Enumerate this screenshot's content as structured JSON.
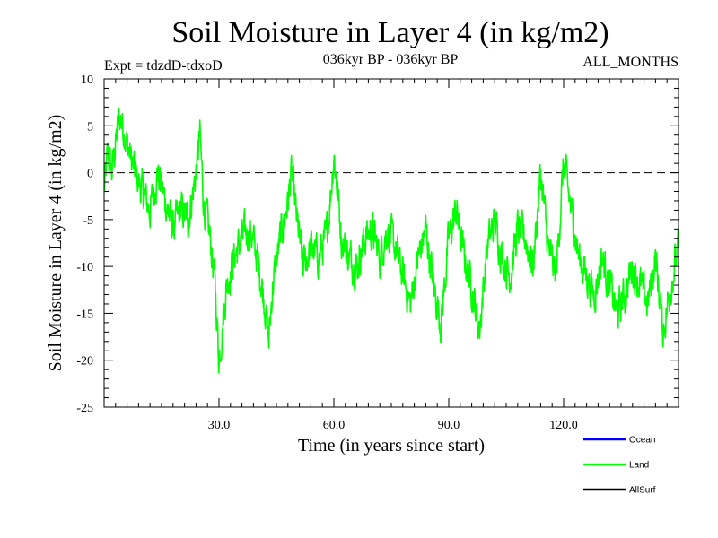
{
  "chart_data": {
    "type": "line",
    "title": "Soil Moisture in Layer 4 (in kg/m2)",
    "subtitle_left": "Expt = tdzdD-tdxoD",
    "subtitle_center": "036kyr BP - 036kyr BP",
    "subtitle_right": "ALL_MONTHS",
    "xlabel": "Time (in years since start)",
    "ylabel": "Soil Moisture in Layer 4 (in kg/m2)",
    "xlim": [
      0,
      150
    ],
    "ylim": [
      -25,
      10
    ],
    "x_ticks": [
      30,
      60,
      90,
      120
    ],
    "x_tick_labels": [
      "30.0",
      "60.0",
      "90.0",
      "120.0"
    ],
    "y_ticks": [
      10,
      5,
      0,
      -5,
      -10,
      -15,
      -20,
      -25
    ],
    "y_tick_labels": [
      "10",
      "5",
      "0",
      "-5",
      "-10",
      "-15",
      "-20",
      "-25"
    ],
    "reference_line": {
      "y": 0,
      "style": "dashed"
    },
    "legend": [
      {
        "name": "Ocean",
        "color": "#0000ff"
      },
      {
        "name": "Land",
        "color": "#00ff00"
      },
      {
        "name": "AllSurf",
        "color": "#000000"
      }
    ],
    "series": [
      {
        "name": "Land",
        "color": "#00ff00",
        "anchors_x": [
          0,
          1,
          2,
          3,
          4,
          5,
          6,
          8,
          10,
          12,
          14,
          16,
          18,
          20,
          22,
          24,
          25,
          26,
          28,
          29,
          30,
          32,
          34,
          36,
          38,
          40,
          42,
          43,
          44,
          46,
          48,
          49,
          50,
          52,
          54,
          56,
          58,
          59,
          60,
          61,
          62,
          64,
          66,
          68,
          70,
          72,
          74,
          76,
          78,
          80,
          82,
          84,
          86,
          88,
          90,
          92,
          94,
          96,
          98,
          100,
          102,
          104,
          106,
          108,
          110,
          112,
          114,
          116,
          118,
          120,
          122,
          124,
          126,
          128,
          130,
          132,
          134,
          136,
          138,
          140,
          142,
          144,
          146,
          148,
          150
        ],
        "anchors_y": [
          -2,
          2,
          0,
          3,
          6,
          5,
          3,
          0,
          -2,
          -4,
          0,
          -3,
          -6,
          -4,
          -5,
          0,
          4,
          -3,
          -8,
          -12,
          -20,
          -12,
          -9,
          -7,
          -6,
          -9,
          -14,
          -18,
          -12,
          -7,
          -3,
          0,
          -4,
          -10,
          -8,
          -9,
          -7,
          -3,
          2,
          -2,
          -7,
          -9,
          -10,
          -7,
          -6,
          -9,
          -6,
          -8,
          -11,
          -14,
          -9,
          -6,
          -12,
          -16,
          -7,
          -4,
          -9,
          -12,
          -17,
          -8,
          -5,
          -9,
          -11,
          -6,
          -7,
          -10,
          0,
          -8,
          -11,
          1,
          -4,
          -9,
          -11,
          -13,
          -9,
          -12,
          -15,
          -13,
          -10,
          -12,
          -14,
          -9,
          -17,
          -12,
          -8
        ]
      }
    ]
  }
}
